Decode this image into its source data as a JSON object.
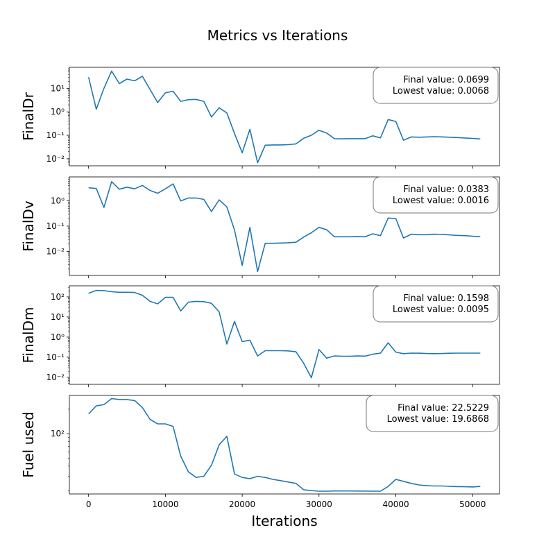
{
  "chart_data": {
    "type": "line",
    "title": "Metrics vs Iterations",
    "xlabel": "Iterations",
    "xlim": [
      -2500,
      53500
    ],
    "xticks": [
      0,
      10000,
      20000,
      30000,
      40000,
      50000
    ],
    "color": "#1f77b4",
    "grid": false,
    "subplots": [
      {
        "ylabel": "FinalDr",
        "yscale": "log",
        "ylim_log10": [
          -2.3,
          1.9
        ],
        "yticks": [
          {
            "v": 0.01,
            "label": "10⁻²"
          },
          {
            "v": 0.1,
            "label": "10⁻¹"
          },
          {
            "v": 1,
            "label": "10⁰"
          },
          {
            "v": 10,
            "label": "10¹"
          }
        ],
        "annotation": [
          "Final value: 0.0699",
          "Lowest value: 0.0068"
        ],
        "x": [
          0,
          1000,
          2000,
          3000,
          4000,
          5000,
          6000,
          7000,
          8000,
          9000,
          10000,
          11000,
          12000,
          13000,
          14000,
          15000,
          16000,
          17000,
          18000,
          19000,
          20000,
          21000,
          22000,
          23000,
          24000,
          25000,
          26000,
          27000,
          28000,
          29000,
          30000,
          31000,
          32000,
          33000,
          34000,
          35000,
          36000,
          37000,
          38000,
          39000,
          40000,
          41000,
          42000,
          43000,
          44000,
          45000,
          46000,
          47000,
          48000,
          49000,
          50000,
          51000
        ],
        "y": [
          30,
          1.3,
          10,
          55,
          16,
          25,
          21,
          33,
          9,
          2.5,
          6.5,
          7.6,
          2.8,
          3.3,
          3.4,
          2.8,
          0.6,
          1.5,
          0.9,
          0.12,
          0.018,
          0.18,
          0.0068,
          0.038,
          0.039,
          0.039,
          0.04,
          0.043,
          0.075,
          0.1,
          0.165,
          0.125,
          0.072,
          0.071,
          0.072,
          0.072,
          0.072,
          0.095,
          0.078,
          0.47,
          0.39,
          0.062,
          0.085,
          0.083,
          0.085,
          0.087,
          0.086,
          0.083,
          0.08,
          0.077,
          0.074,
          0.0699
        ]
      },
      {
        "ylabel": "FinalDv",
        "yscale": "log",
        "ylim_log10": [
          -2.95,
          0.95
        ],
        "yticks": [
          {
            "v": 0.01,
            "label": "10⁻²"
          },
          {
            "v": 0.1,
            "label": "10⁻¹"
          },
          {
            "v": 1,
            "label": "10⁰"
          }
        ],
        "annotation": [
          "Final value: 0.0383",
          "Lowest value: 0.0016"
        ],
        "x": [
          0,
          1000,
          2000,
          3000,
          4000,
          5000,
          6000,
          7000,
          8000,
          9000,
          10000,
          11000,
          12000,
          13000,
          14000,
          15000,
          16000,
          17000,
          18000,
          19000,
          20000,
          21000,
          22000,
          23000,
          24000,
          25000,
          26000,
          27000,
          28000,
          29000,
          30000,
          31000,
          32000,
          33000,
          34000,
          35000,
          36000,
          37000,
          38000,
          39000,
          40000,
          41000,
          42000,
          43000,
          44000,
          45000,
          46000,
          47000,
          48000,
          49000,
          50000,
          51000
        ],
        "y": [
          3.3,
          3.1,
          0.55,
          5.8,
          2.9,
          3.5,
          3.0,
          4.1,
          2.6,
          2.0,
          3.0,
          4.7,
          1.0,
          1.3,
          1.3,
          1.15,
          0.38,
          1.1,
          0.58,
          0.07,
          0.0028,
          0.09,
          0.0016,
          0.021,
          0.021,
          0.0215,
          0.022,
          0.023,
          0.037,
          0.055,
          0.09,
          0.072,
          0.038,
          0.038,
          0.038,
          0.0385,
          0.038,
          0.05,
          0.042,
          0.21,
          0.2,
          0.034,
          0.048,
          0.046,
          0.046,
          0.048,
          0.047,
          0.045,
          0.043,
          0.042,
          0.04,
          0.0383
        ]
      },
      {
        "ylabel": "FinalDm",
        "yscale": "log",
        "ylim_log10": [
          -2.35,
          2.55
        ],
        "yticks": [
          {
            "v": 0.01,
            "label": "10⁻²"
          },
          {
            "v": 0.1,
            "label": "10⁻¹"
          },
          {
            "v": 1,
            "label": "10⁰"
          },
          {
            "v": 10,
            "label": "10¹"
          },
          {
            "v": 100,
            "label": "10²"
          }
        ],
        "annotation": [
          "Final value: 0.1598",
          "Lowest value: 0.0095"
        ],
        "x": [
          0,
          1000,
          2000,
          3000,
          4000,
          5000,
          6000,
          7000,
          8000,
          9000,
          10000,
          11000,
          12000,
          13000,
          14000,
          15000,
          16000,
          17000,
          18000,
          19000,
          20000,
          21000,
          22000,
          23000,
          24000,
          25000,
          26000,
          27000,
          28000,
          29000,
          30000,
          31000,
          32000,
          33000,
          34000,
          35000,
          36000,
          37000,
          38000,
          39000,
          40000,
          41000,
          42000,
          43000,
          44000,
          45000,
          46000,
          47000,
          48000,
          49000,
          50000,
          51000
        ],
        "y": [
          150,
          210,
          205,
          180,
          170,
          170,
          165,
          120,
          60,
          45,
          95,
          95,
          20,
          55,
          60,
          58,
          48,
          18,
          0.45,
          6.0,
          0.6,
          0.7,
          0.115,
          0.21,
          0.21,
          0.21,
          0.205,
          0.185,
          0.05,
          0.0095,
          0.24,
          0.09,
          0.115,
          0.112,
          0.112,
          0.115,
          0.113,
          0.14,
          0.16,
          0.52,
          0.18,
          0.15,
          0.16,
          0.158,
          0.152,
          0.15,
          0.152,
          0.157,
          0.16,
          0.16,
          0.159,
          0.1598
        ]
      },
      {
        "ylabel": "Fuel used",
        "yscale": "log",
        "ylim_log10": [
          1.26,
          2.47
        ],
        "yticks": [
          {
            "v": 100,
            "label": "10²"
          }
        ],
        "minor_yticks": [
          20,
          30,
          40,
          50,
          60,
          70,
          80,
          90,
          200
        ],
        "annotation": [
          "Final value: 22.5229",
          "Lowest value: 19.6868"
        ],
        "x": [
          0,
          1000,
          2000,
          3000,
          4000,
          5000,
          6000,
          7000,
          8000,
          9000,
          10000,
          11000,
          12000,
          13000,
          14000,
          15000,
          16000,
          17000,
          18000,
          19000,
          20000,
          21000,
          22000,
          23000,
          24000,
          25000,
          26000,
          27000,
          28000,
          29000,
          30000,
          31000,
          32000,
          33000,
          34000,
          35000,
          36000,
          37000,
          38000,
          39000,
          40000,
          41000,
          42000,
          43000,
          44000,
          45000,
          46000,
          47000,
          48000,
          49000,
          50000,
          51000
        ],
        "y": [
          175,
          220,
          228,
          270,
          263,
          263,
          255,
          210,
          150,
          132,
          132,
          123,
          53,
          34,
          29,
          30,
          41,
          73,
          93,
          32,
          29,
          28,
          30,
          29,
          27.5,
          26.5,
          25.5,
          24.5,
          20.5,
          20,
          19.7,
          19.7,
          19.8,
          19.8,
          19.8,
          19.75,
          19.75,
          19.7,
          19.7,
          22.5,
          27.5,
          26,
          24.5,
          23.5,
          23,
          22.8,
          22.8,
          22.6,
          22.4,
          22.3,
          22.2,
          22.5229
        ]
      }
    ]
  }
}
